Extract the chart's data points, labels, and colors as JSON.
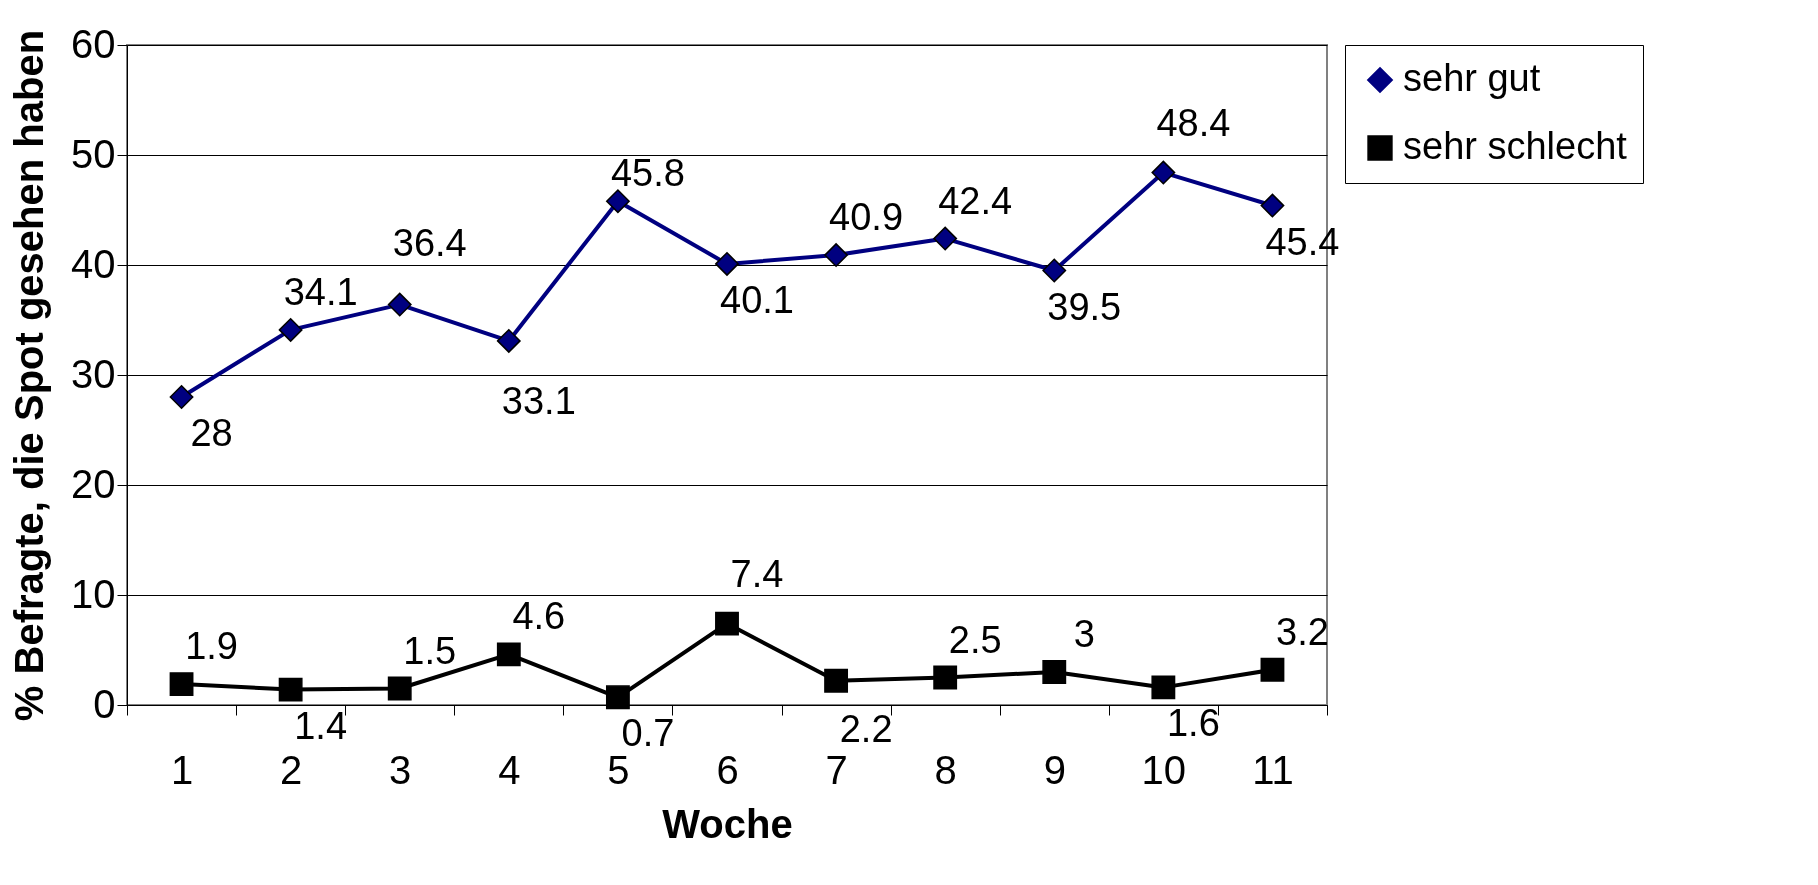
{
  "chart_data": {
    "type": "line",
    "xlabel": "Woche",
    "ylabel": "% Befragte, die Spot gesehen haben",
    "categories": [
      "1",
      "2",
      "3",
      "4",
      "5",
      "6",
      "7",
      "8",
      "9",
      "10",
      "11"
    ],
    "series": [
      {
        "name": "sehr gut",
        "color": "#000080",
        "marker": "diamond",
        "values": [
          28,
          34.1,
          36.4,
          33.1,
          45.8,
          40.1,
          40.9,
          42.4,
          39.5,
          48.4,
          45.4
        ]
      },
      {
        "name": "sehr schlecht",
        "color": "#000000",
        "marker": "square",
        "values": [
          1.9,
          1.4,
          1.5,
          4.6,
          0.7,
          7.4,
          2.2,
          2.5,
          3,
          1.6,
          3.2
        ]
      }
    ],
    "ylim": [
      0,
      60
    ],
    "yticks": [
      0,
      10,
      20,
      30,
      40,
      50,
      60
    ],
    "grid": "y",
    "legend": "right",
    "data_labels": true
  }
}
